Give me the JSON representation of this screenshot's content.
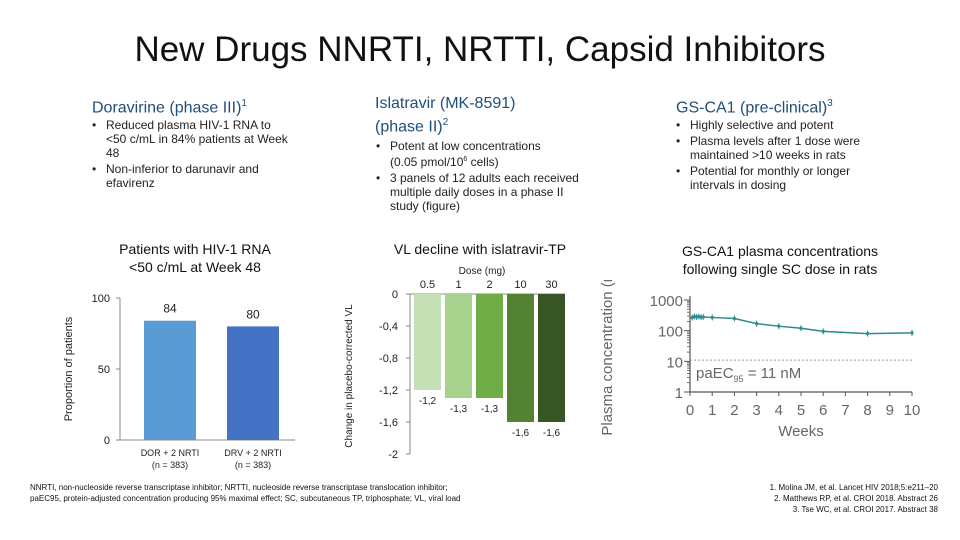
{
  "title": "New Drugs NNRTI, NRTTI, Capsid Inhibitors",
  "columns": {
    "doravirine": {
      "heading": "Doravirine (phase III)",
      "sup": "1",
      "bullets": [
        "Reduced plasma HIV-1 RNA to <50 c/mL in 84% patients at Week 48",
        "Non-inferior to darunavir and efavirenz"
      ]
    },
    "islatravir": {
      "heading_line1": "Islatravir (MK-8591)",
      "heading_line2": "(phase II)",
      "sup": "2",
      "bullet1_a": "Potent at low concentrations",
      "bullet1_b": "(0.05 pmol/10",
      "bullet1_exp": "6",
      "bullet1_c": " cells)",
      "bullet2": "3 panels of 12 adults each received multiple daily doses in a phase II study (figure)"
    },
    "gsca1": {
      "heading": "GS-CA1 (pre-clinical)",
      "sup": "3",
      "bullets": [
        "Highly selective and potent",
        "Plasma levels after 1 dose were maintained >10 weeks in rats",
        "Potential for monthly or longer intervals in dosing"
      ]
    }
  },
  "chart_titles": {
    "bar": [
      "Patients with HIV-1 RNA",
      "<50 c/mL at Week 48"
    ],
    "vl": "VL decline with islatravir-TP",
    "pk": [
      "GS-CA1 plasma concentrations",
      "following single SC dose in rats"
    ]
  },
  "chart_data": [
    {
      "type": "bar",
      "title": "Patients with HIV-1 RNA <50 c/mL at Week 48",
      "ylabel": "Proportion of patients",
      "ylim": [
        0,
        100
      ],
      "yticks": [
        "0",
        "50",
        "100"
      ],
      "categories": [
        "DOR + 2 NRTI",
        "DRV + 2 NRTI"
      ],
      "category_sublabels": [
        "(n = 383)",
        "(n = 383)"
      ],
      "values": [
        84,
        80
      ],
      "value_labels": [
        "84",
        "80"
      ],
      "colors": [
        "#5b9bd5",
        "#4472c4"
      ]
    },
    {
      "type": "bar",
      "title": "VL decline with islatravir-TP",
      "xlabel": "Dose (mg)",
      "ylabel": "Change in placebo-corrected VL",
      "ylim": [
        -2,
        0
      ],
      "yticks": [
        "0",
        "-0,4",
        "-0,8",
        "-1,2",
        "-1,6",
        "-2"
      ],
      "categories": [
        "0.5",
        "1",
        "2",
        "10",
        "30"
      ],
      "values": [
        -1.2,
        -1.3,
        -1.3,
        -1.6,
        -1.6
      ],
      "value_labels": [
        "-1,2",
        "-1,3",
        "-1,3",
        "-1,6",
        "-1,6"
      ],
      "colors": [
        "#c5e0b4",
        "#a9d18e",
        "#70ad47",
        "#548235",
        "#375623"
      ]
    },
    {
      "type": "line",
      "title": "GS-CA1 plasma concentrations following single SC dose in rats",
      "xlabel": "Weeks",
      "ylabel": "Plasma concentration (nM)",
      "yscale": "log",
      "ylim": [
        1,
        1000
      ],
      "xlim": [
        0,
        10
      ],
      "xticks": [
        "0",
        "1",
        "2",
        "3",
        "4",
        "5",
        "6",
        "7",
        "8",
        "9",
        "10"
      ],
      "yticks": [
        "1",
        "10",
        "100",
        "1000"
      ],
      "x": [
        0.1,
        0.2,
        0.3,
        0.4,
        0.5,
        0.6,
        1,
        2,
        3,
        4,
        5,
        6,
        8,
        10
      ],
      "values": [
        270,
        290,
        280,
        290,
        275,
        280,
        270,
        250,
        170,
        140,
        120,
        95,
        80,
        85
      ],
      "annotation": "paEC",
      "annotation_sub": "95",
      "annotation_value": " = 11 nM",
      "threshold": 11,
      "color": "#2e8b8b"
    }
  ],
  "footnote": "NNRTI, non-nucleoside reverse transcriptase inhibitor; NRTTI, nucleoside reverse transcriptase translocation inhibitor; paEC95, protein-adjusted concentration producing 95% maximal effect; SC, subcutaneous TP, triphosphate; VL, viral load",
  "references": [
    "1. Molina JM, et al. Lancet HIV 2018;5:e211–20",
    "2. Matthews RP, et al. CROI 2018. Abstract 26",
    "3. Tse WC, et al. CROI 2017. Abstract 38"
  ]
}
